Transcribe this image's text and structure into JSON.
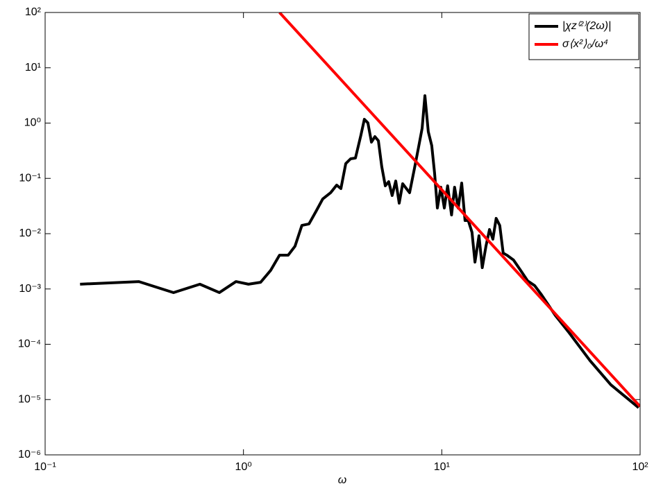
{
  "chart_data": {
    "type": "line",
    "xlabel": "ω",
    "xscale": "log",
    "yscale": "log",
    "xlim": [
      0.1,
      100
    ],
    "ylim": [
      1e-06,
      100
    ],
    "xticks": [
      {
        "value": 0.1,
        "label": "10⁻¹"
      },
      {
        "value": 1,
        "label": "10⁰"
      },
      {
        "value": 10,
        "label": "10¹"
      },
      {
        "value": 100,
        "label": "10²"
      }
    ],
    "yticks": [
      {
        "value": 1e-06,
        "label": "10⁻⁶"
      },
      {
        "value": 1e-05,
        "label": "10⁻⁵"
      },
      {
        "value": 0.0001,
        "label": "10⁻⁴"
      },
      {
        "value": 0.001,
        "label": "10⁻³"
      },
      {
        "value": 0.01,
        "label": "10⁻²"
      },
      {
        "value": 0.1,
        "label": "10⁻¹"
      },
      {
        "value": 1,
        "label": "10⁰"
      },
      {
        "value": 10,
        "label": "10¹"
      },
      {
        "value": 100,
        "label": "10²"
      }
    ],
    "legend": "upper right",
    "series": [
      {
        "name": "|χz⁽²⁾(2ω)|",
        "color": "#000000",
        "x": [
          0.15,
          0.297,
          0.444,
          0.603,
          0.756,
          0.917,
          1.06,
          1.22,
          1.37,
          1.52,
          1.68,
          1.82,
          1.97,
          2.14,
          2.32,
          2.51,
          2.75,
          2.95,
          3.1,
          3.28,
          3.47,
          3.67,
          3.91,
          4.07,
          4.24,
          4.42,
          4.6,
          4.79,
          4.98,
          5.19,
          5.4,
          5.62,
          5.86,
          6.1,
          6.35,
          6.88,
          7.28,
          7.64,
          7.96,
          8.22,
          8.55,
          8.9,
          9.2,
          9.5,
          9.89,
          10.3,
          10.7,
          11.2,
          11.6,
          12.1,
          12.6,
          13.1,
          13.6,
          14.2,
          14.7,
          15.4,
          16.0,
          16.7,
          17.4,
          18.1,
          18.8,
          19.6,
          20.4,
          21.3,
          23.0,
          25.0,
          27.1,
          29.4,
          31.8,
          34.5,
          37.4,
          43.9,
          55.9,
          71.2,
          98.3
        ],
        "values": [
          0.00122,
          0.00136,
          0.00086,
          0.00122,
          0.00086,
          0.00136,
          0.00122,
          0.00132,
          0.00216,
          0.00408,
          0.00408,
          0.00594,
          0.0141,
          0.015,
          0.0252,
          0.0424,
          0.055,
          0.0755,
          0.0653,
          0.185,
          0.226,
          0.233,
          0.604,
          1.17,
          1.01,
          0.452,
          0.569,
          0.479,
          0.164,
          0.0733,
          0.0871,
          0.049,
          0.0897,
          0.0356,
          0.08,
          0.055,
          0.151,
          0.369,
          0.805,
          3.13,
          0.697,
          0.391,
          0.123,
          0.0291,
          0.0692,
          0.0291,
          0.0733,
          0.0218,
          0.0692,
          0.0291,
          0.0822,
          0.0173,
          0.0173,
          0.0106,
          0.00306,
          0.00917,
          0.00243,
          0.00594,
          0.0119,
          0.00794,
          0.0189,
          0.0141,
          0.00446,
          0.00408,
          0.00334,
          0.00216,
          0.0014,
          0.00115,
          0.000788,
          0.000511,
          0.000331,
          0.000161,
          5.07e-05,
          1.85e-05,
          7.13e-06
        ]
      },
      {
        "name": "σ⟨x²⟩₀/ω⁴",
        "color": "#ff0000",
        "x": [
          1.52,
          100
        ],
        "values": [
          100,
          7.5e-06
        ]
      }
    ]
  }
}
